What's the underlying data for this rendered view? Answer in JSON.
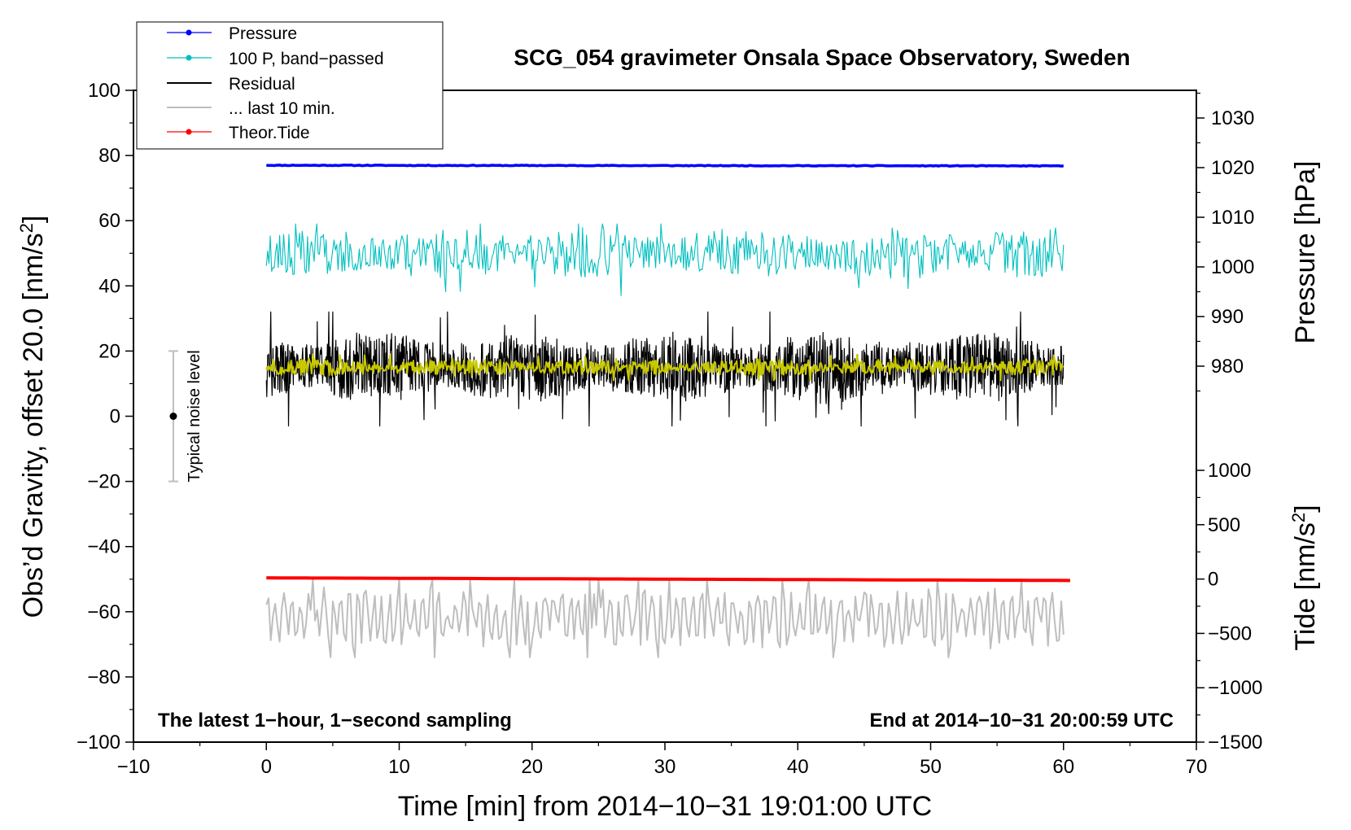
{
  "chart_data": {
    "type": "line",
    "title": "SCG_054 gravimeter Onsala Space Observatory, Sweden",
    "xlabel": "Time [min] from 2014−10−31 19:01:00 UTC",
    "ylabel_left": "Obs’d Gravity, offset 20.0 [nm/s",
    "ylabel_left_sup": "2",
    "ylabel_left_close": "]",
    "ylabel_pressure": "Pressure [hPa]",
    "ylabel_tide": "Tide [nm/s",
    "ylabel_tide_sup": "2",
    "ylabel_tide_close": "]",
    "xlim": [
      -10,
      70
    ],
    "ylim_left": [
      -100,
      100
    ],
    "ylim_pressure": [
      960,
      1035
    ],
    "ylim_tide": [
      -1500,
      1000
    ],
    "x_ticks": [
      -10,
      0,
      10,
      20,
      30,
      40,
      50,
      60,
      70
    ],
    "x_tick_labels": [
      "−10",
      "0",
      "10",
      "20",
      "30",
      "40",
      "50",
      "60",
      "70"
    ],
    "y_ticks_left": [
      -100,
      -80,
      -60,
      -40,
      -20,
      0,
      20,
      40,
      60,
      80,
      100
    ],
    "y_tick_labels_left": [
      "−100",
      "−80",
      "−60",
      "−40",
      "−20",
      "0",
      "20",
      "40",
      "60",
      "80",
      "100"
    ],
    "pressure_ticks": [
      980,
      990,
      1000,
      1010,
      1020,
      1030
    ],
    "pressure_tick_labels": [
      "980",
      "990",
      "1000",
      "1010",
      "1020",
      "1030"
    ],
    "tide_ticks": [
      -1500,
      -1000,
      -500,
      0,
      500,
      1000
    ],
    "tide_tick_labels": [
      "−1500",
      "−1000",
      "−500",
      "0",
      "500",
      "1000"
    ],
    "legend": [
      {
        "name": "Pressure",
        "color": "#0000ff",
        "marker": true
      },
      {
        "name": "100 P, band−passed",
        "color": "#00bfbf",
        "marker": true
      },
      {
        "name": "Residual",
        "color": "#000000",
        "marker": false
      },
      {
        "name": "... last 10 min.",
        "color": "#bebebe",
        "marker": false
      },
      {
        "name": "Theor.Tide",
        "color": "#ff0000",
        "marker": true
      }
    ],
    "series": [
      {
        "name": "Pressure",
        "axis": "left",
        "color": "#0000ff",
        "x_range": [
          0,
          60
        ],
        "start": 77.0,
        "end": 76.8,
        "noise": 0.2,
        "seed": 11
      },
      {
        "name": "100 P, band−passed",
        "axis": "left",
        "color": "#00bfbf",
        "x_range": [
          0,
          60
        ],
        "center": 50,
        "amplitude": 4.5,
        "extremes": [
          37,
          59
        ],
        "points": 600,
        "seed": 23
      },
      {
        "name": "Residual",
        "axis": "left",
        "color": "#000000",
        "x_range": [
          0,
          60
        ],
        "center": 15,
        "amplitude": 6,
        "extremes": [
          -3,
          32
        ],
        "points": 1800,
        "seed": 37
      },
      {
        "name": "Residual smoothed",
        "axis": "left",
        "color": "#c8c800",
        "x_range": [
          0,
          60
        ],
        "center": 15,
        "amplitude": 1.5,
        "extremes": [
          11,
          19
        ],
        "points": 900,
        "seed": 51
      },
      {
        "name": "... last 10 min.",
        "axis": "left",
        "color": "#bebebe",
        "x_range": [
          0,
          60
        ],
        "center": -62,
        "amplitude": 6,
        "extremes": [
          -76,
          -48
        ],
        "points": 360,
        "seed": 71
      },
      {
        "name": "Theor.Tide",
        "axis": "left",
        "color": "#ff0000",
        "x_range": [
          0,
          60.5
        ],
        "start": -49.6,
        "end": -50.4
      }
    ],
    "noise_bar": {
      "x": -7,
      "y_low": -20,
      "y_high": 20,
      "center": 0,
      "label": "Typical noise level"
    },
    "annotation_left": "The latest 1−hour, 1−second sampling",
    "annotation_right": "End at 2014−10−31 20:00:59 UTC"
  }
}
